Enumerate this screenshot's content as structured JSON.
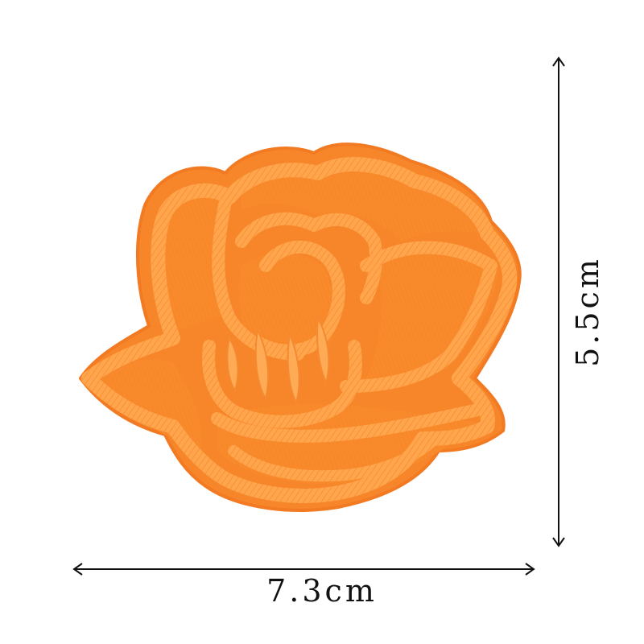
{
  "product": {
    "description_icon": "orange-rose-embroidered-patch",
    "base_color": "#f98a2b",
    "stitch_color": "#ffa24a",
    "shadow_color": "#e8711a"
  },
  "dimensions": {
    "width_label": "7.3cm",
    "height_label": "5.5cm",
    "line_color": "#111111"
  }
}
